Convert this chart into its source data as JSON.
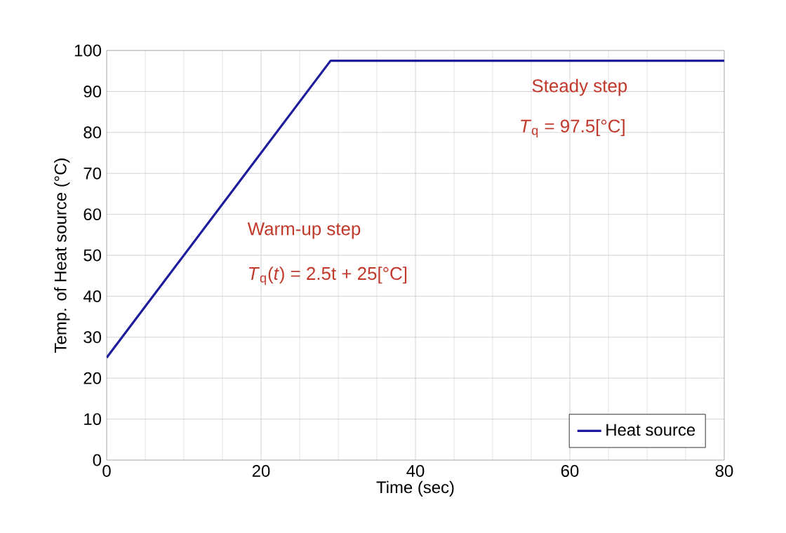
{
  "chart_data": {
    "type": "line",
    "xlabel": "Time (sec)",
    "ylabel": "Temp. of Heat source (°C)",
    "x": [
      0,
      29,
      80
    ],
    "series": [
      {
        "name": "Heat source",
        "color": "#1c1c9c",
        "values": [
          25,
          97.5,
          97.5
        ]
      }
    ],
    "xlim": [
      0,
      80
    ],
    "xticks": [
      0,
      20,
      40,
      60,
      80
    ],
    "ylim": [
      0,
      100
    ],
    "yticks": [
      0,
      10,
      20,
      30,
      40,
      50,
      60,
      70,
      80,
      90,
      100
    ],
    "grid": true,
    "legend": "bottom right",
    "marker": "none",
    "line_style": "solid",
    "annotations": [
      "Steady step",
      "*T*$_{q}$ = 97.5[°C]",
      "Warm-up step",
      "*T*$_{q}$(*t*) = 2.5t + 25[°C]"
    ]
  }
}
